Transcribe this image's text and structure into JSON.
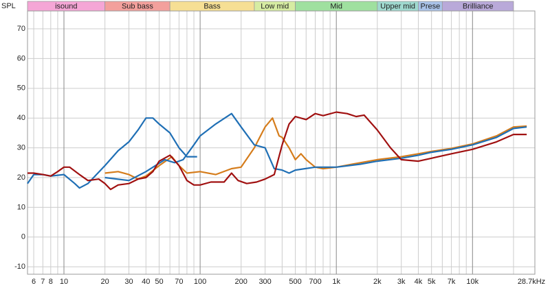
{
  "chart_data": {
    "type": "line",
    "y_label": "SPL",
    "xscale": "log",
    "xlim": [
      5.4,
      28700
    ],
    "ylim": [
      -12.5,
      76
    ],
    "yticks": [
      -10,
      0,
      10,
      20,
      30,
      40,
      50,
      60,
      70
    ],
    "xticks": [
      6,
      7,
      8,
      10,
      20,
      30,
      40,
      50,
      70,
      100,
      200,
      300,
      500,
      700,
      {
        "value": 1000,
        "label": "1k"
      },
      {
        "value": 2000,
        "label": "2k"
      },
      {
        "value": 3000,
        "label": "3k"
      },
      {
        "value": 4000,
        "label": "4k"
      },
      {
        "value": 5000,
        "label": "5k"
      },
      {
        "value": 7000,
        "label": "7k"
      },
      {
        "value": 10000,
        "label": "10k"
      },
      {
        "value": 28700,
        "label": "28.7kHz"
      }
    ],
    "xminor": [
      9,
      60,
      80,
      90,
      400,
      600,
      800,
      900,
      6000,
      8000,
      9000,
      20000
    ],
    "grid": true,
    "bands": [
      {
        "label": "isound",
        "to": 20,
        "color": "#f5a6d6"
      },
      {
        "label": "Sub bass",
        "to": 60,
        "color": "#f3a09c"
      },
      {
        "label": "Bass",
        "to": 250,
        "color": "#f6df94"
      },
      {
        "label": "Low mid",
        "to": 500,
        "color": "#d6eca2"
      },
      {
        "label": "Mid",
        "to": 2000,
        "color": "#9fe09f"
      },
      {
        "label": "Upper mid",
        "to": 4000,
        "color": "#9fd9cf"
      },
      {
        "label": "Prese",
        "to": 6000,
        "color": "#a9c2e8"
      },
      {
        "label": "Brilliance",
        "to": 20000,
        "color": "#b9a9d9"
      }
    ],
    "series": [
      {
        "color": "#1f6fb5",
        "x": [
          5.4,
          6,
          7,
          8,
          10,
          12,
          13,
          15,
          20,
          25,
          30,
          35,
          40,
          45,
          50,
          60,
          70,
          80,
          90,
          95
        ],
        "values": [
          18,
          21,
          21,
          20.5,
          21,
          18,
          16.5,
          18,
          24,
          29,
          32,
          36,
          40,
          40,
          38,
          35,
          30,
          27,
          27,
          27
        ]
      },
      {
        "color": "#d57c1b",
        "x": [
          20,
          25,
          30,
          35,
          40,
          50,
          62,
          70,
          80,
          100,
          130,
          170,
          200,
          250,
          300,
          340,
          380,
          400,
          450,
          500,
          550,
          600,
          700,
          800,
          1000,
          1500,
          2000,
          3000,
          4000,
          5000,
          7000,
          10000,
          15000,
          20000,
          25000
        ],
        "values": [
          21.5,
          22,
          21,
          19.5,
          20.5,
          24,
          27,
          24,
          21.5,
          22,
          21,
          23,
          23.5,
          30,
          37,
          40,
          34,
          33.5,
          30,
          26,
          28,
          26,
          23.5,
          23,
          23.5,
          25,
          26,
          27,
          28,
          28.8,
          29.8,
          31.3,
          34,
          37,
          37.3
        ]
      },
      {
        "color": "#1f6fb5",
        "x": [
          20,
          30,
          40,
          55,
          65,
          75,
          90,
          100,
          130,
          170,
          200,
          250,
          300,
          350,
          400,
          450,
          500,
          700,
          1000,
          1500,
          2000,
          3000,
          4000,
          5000,
          7000,
          10000,
          15000,
          20000,
          25000
        ],
        "values": [
          20,
          19,
          22,
          26,
          25,
          26,
          31,
          34,
          38,
          41.5,
          37,
          31,
          30,
          23,
          22.5,
          21.5,
          22.5,
          23.5,
          23.5,
          24.5,
          25.5,
          26.5,
          27.5,
          28.5,
          29.5,
          31,
          33.5,
          36.5,
          37
        ]
      },
      {
        "color": "#a01010",
        "x": [
          5.4,
          6,
          7,
          8,
          9,
          10,
          11,
          13,
          15,
          18,
          20,
          22,
          25,
          30,
          35,
          40,
          45,
          50,
          60,
          70,
          80,
          90,
          100,
          120,
          150,
          170,
          190,
          220,
          260,
          300,
          350,
          400,
          450,
          500,
          600,
          700,
          800,
          1000,
          1200,
          1400,
          1600,
          2000,
          2500,
          3000,
          4000,
          5000,
          7000,
          10000,
          15000,
          20000,
          25000
        ],
        "values": [
          21.5,
          21.5,
          21,
          20.5,
          22,
          23.5,
          23.5,
          21,
          19,
          19.5,
          18,
          16,
          17.5,
          18,
          19.5,
          20,
          22,
          25.5,
          27.5,
          24,
          19,
          17.5,
          17.5,
          18.5,
          18.5,
          21.5,
          19,
          18,
          18.5,
          19.5,
          21,
          31,
          38,
          40.5,
          39.5,
          41.5,
          40.8,
          42,
          41.5,
          40.5,
          41,
          36,
          30,
          26,
          25.5,
          26.5,
          28,
          29.5,
          32,
          34.5,
          34.5
        ]
      }
    ]
  }
}
